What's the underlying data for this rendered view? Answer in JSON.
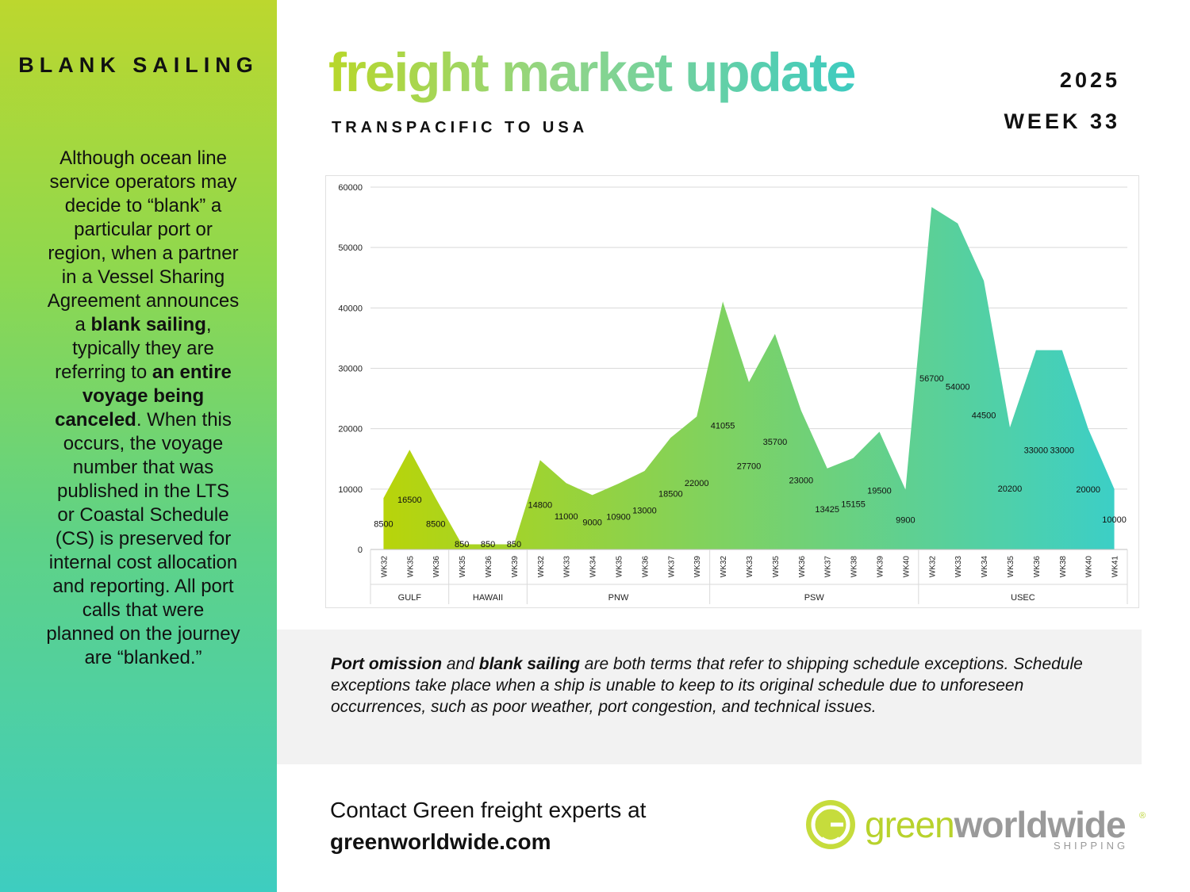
{
  "sidebar": {
    "title": "BLANK SAILING",
    "text_parts": [
      {
        "t": "Although ocean line service operators may decide to “blank” a particular port or region, when a partner in a Vessel Sharing Agreement announces a ",
        "b": false
      },
      {
        "t": "blank sailing",
        "b": true
      },
      {
        "t": ", typically they are referring to ",
        "b": false
      },
      {
        "t": "an entire voyage being canceled",
        "b": true
      },
      {
        "t": ". When this occurs, the voyage number that was published in the LTS or Coastal Schedule (CS) is preserved for internal cost allocation and reporting. All port calls that were planned on the journey are “blanked.”",
        "b": false
      }
    ]
  },
  "header": {
    "title": "freight market update",
    "subtitle": "TRANSPACIFIC TO USA",
    "year": "2025",
    "week": "WEEK 33"
  },
  "colors": {
    "sidebar_top": "#bcd72e",
    "sidebar_bottom": "#3ecdc0",
    "chart_start": "#b8d40a",
    "chart_end": "#3ccfc6",
    "brand_green": "#b8d22c",
    "brand_grey": "#9a9a9a"
  },
  "chart_data": {
    "type": "area",
    "title": "",
    "xlabel": "",
    "ylabel": "",
    "ylim": [
      0,
      60000
    ],
    "yticks": [
      0,
      10000,
      20000,
      30000,
      40000,
      50000,
      60000
    ],
    "grid": true,
    "data_labels": true,
    "groups": [
      {
        "name": "GULF",
        "categories": [
          "WK32",
          "WK35",
          "WK36"
        ],
        "values": [
          8500,
          16500,
          8500
        ]
      },
      {
        "name": "HAWAII",
        "categories": [
          "WK35",
          "WK36",
          "WK39"
        ],
        "values": [
          850,
          850,
          850
        ]
      },
      {
        "name": "PNW",
        "categories": [
          "WK32",
          "WK33",
          "WK34",
          "WK35",
          "WK36",
          "WK37",
          "WK39"
        ],
        "values": [
          14800,
          11000,
          9000,
          10900,
          13000,
          18500,
          22000
        ]
      },
      {
        "name": "PSW",
        "categories": [
          "WK32",
          "WK33",
          "WK35",
          "WK36",
          "WK37",
          "WK38",
          "WK39",
          "WK40"
        ],
        "values": [
          41055,
          27700,
          35700,
          23000,
          13425,
          15155,
          19500,
          9900
        ]
      },
      {
        "name": "USEC",
        "categories": [
          "WK32",
          "WK33",
          "WK34",
          "WK35",
          "WK36",
          "WK38",
          "WK40",
          "WK41"
        ],
        "values": [
          56700,
          54000,
          44500,
          20200,
          33000,
          33000,
          20000,
          10000
        ]
      }
    ]
  },
  "note": {
    "parts": [
      {
        "t": "Port omission",
        "b": true
      },
      {
        "t": " and ",
        "b": false
      },
      {
        "t": "blank sailing",
        "b": true
      },
      {
        "t": " are both terms that refer to shipping schedule exceptions. Schedule exceptions take place when a ship is unable to keep to its original schedule due to unforeseen occurrences, such as poor weather, port congestion, and technical issues.",
        "b": false
      }
    ]
  },
  "contact": {
    "line1": "Contact Green freight experts at",
    "url": "greenworldwide.com"
  },
  "logo": {
    "word1": "green",
    "word2": "worldwide",
    "reg": "®",
    "sub": "SHIPPING",
    "icon": "globe-g-icon"
  }
}
